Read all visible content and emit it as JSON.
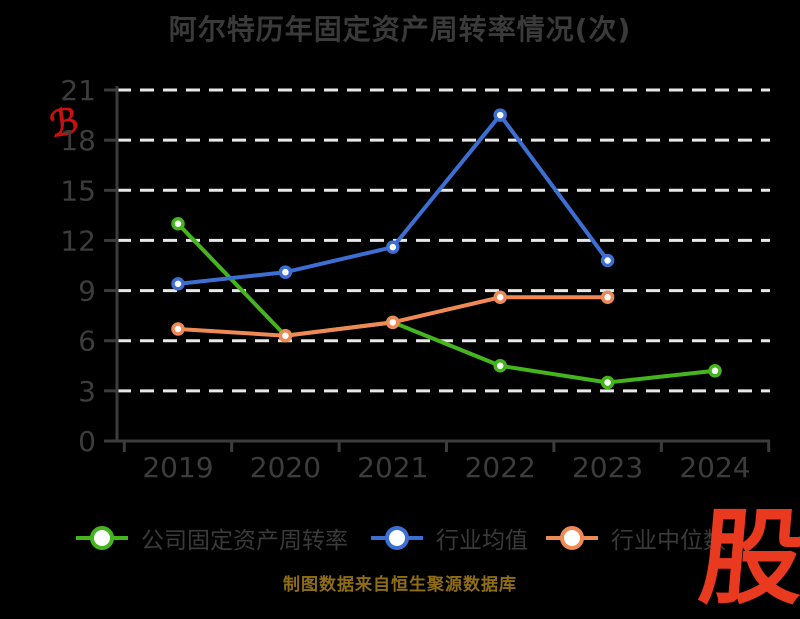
{
  "title": "阿尔特历年固定资产周转率情况(次)",
  "watermark_glyph": "ℬ",
  "source_note": "制图数据来自恒生聚源数据库",
  "logo_text": "股",
  "colors": {
    "background": "#000000",
    "title": "#3a3a3a",
    "axis": "#3c3c3c",
    "grid": "#e8e8e8",
    "legend_label": "#3a3a3a",
    "source": "#8f6d15",
    "logo": "#e93a1f",
    "watermark": "#c51111",
    "marker_fill": "#ffffff",
    "series_company": "#45b51e",
    "series_mean": "#3d6fd3",
    "series_median": "#f08a55"
  },
  "chart_data": {
    "type": "line",
    "title": "阿尔特历年固定资产周转率情况(次)",
    "categories": [
      "2019",
      "2020",
      "2021",
      "2022",
      "2023",
      "2024"
    ],
    "series": [
      {
        "name": "公司固定资产周转率",
        "color_key": "series_company",
        "values": [
          13.0,
          6.3,
          7.1,
          4.5,
          3.5,
          4.2
        ]
      },
      {
        "name": "行业均值",
        "color_key": "series_mean",
        "values": [
          9.4,
          10.1,
          11.6,
          19.5,
          10.8,
          null
        ]
      },
      {
        "name": "行业中位数",
        "color_key": "series_median",
        "values": [
          6.7,
          6.3,
          7.1,
          8.6,
          8.6,
          null
        ]
      }
    ],
    "xlabel": "",
    "ylabel": "",
    "ylim": [
      0,
      21
    ],
    "yticks": [
      0,
      3,
      6,
      9,
      12,
      15,
      18,
      21
    ],
    "grid": "horizontal-dashed-white",
    "legend_position": "bottom"
  }
}
